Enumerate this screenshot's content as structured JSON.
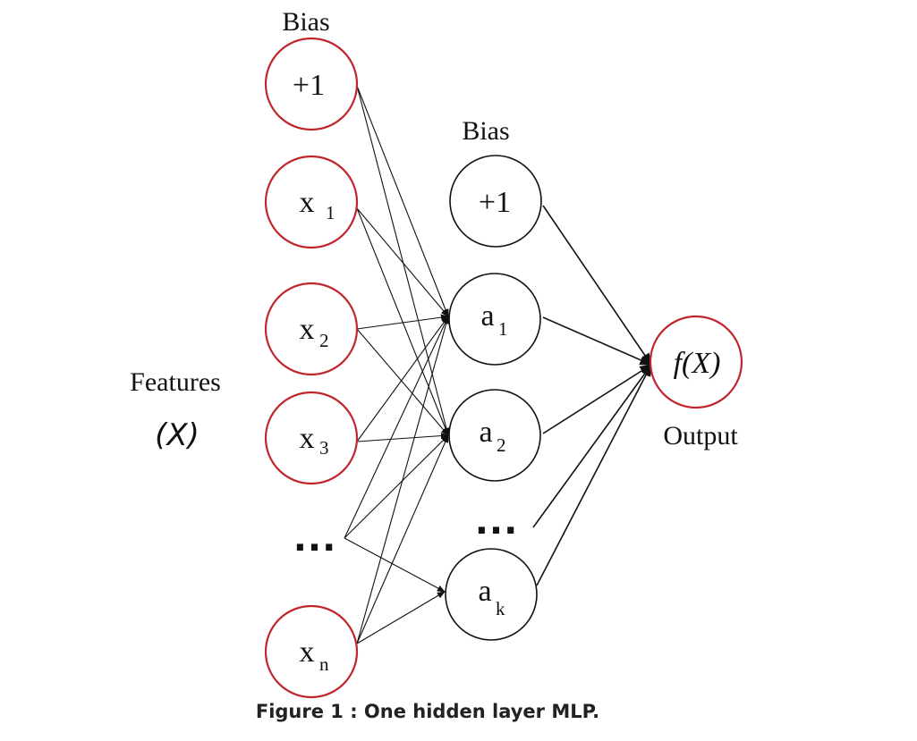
{
  "labels": {
    "input_bias_title": "Bias",
    "hidden_bias_title": "Bias",
    "features_label": "Features",
    "features_symbol": "(X)",
    "output_label": "Output",
    "hidden_ellipsis": "...",
    "input_ellipsis": "..."
  },
  "colors": {
    "input_node_border": "#c0272d",
    "output_node_border": "#c0272d",
    "hidden_node_border": "#111111",
    "edge_color": "#111111"
  },
  "input_nodes": [
    {
      "id": "bias",
      "text": "+1",
      "sub": ""
    },
    {
      "id": "x1",
      "text": "x",
      "sub": "1"
    },
    {
      "id": "x2",
      "text": "x",
      "sub": "2"
    },
    {
      "id": "x3",
      "text": "x",
      "sub": "3"
    },
    {
      "id": "xn",
      "text": "x",
      "sub": "n"
    }
  ],
  "hidden_nodes": [
    {
      "id": "hbias",
      "text": "+1",
      "sub": ""
    },
    {
      "id": "a1",
      "text": "a",
      "sub": "1"
    },
    {
      "id": "a2",
      "text": "a",
      "sub": "2"
    },
    {
      "id": "ak",
      "text": "a",
      "sub": "k"
    }
  ],
  "output_node": {
    "text": "f(X)"
  },
  "caption": "Figure 1 : One hidden layer MLP."
}
